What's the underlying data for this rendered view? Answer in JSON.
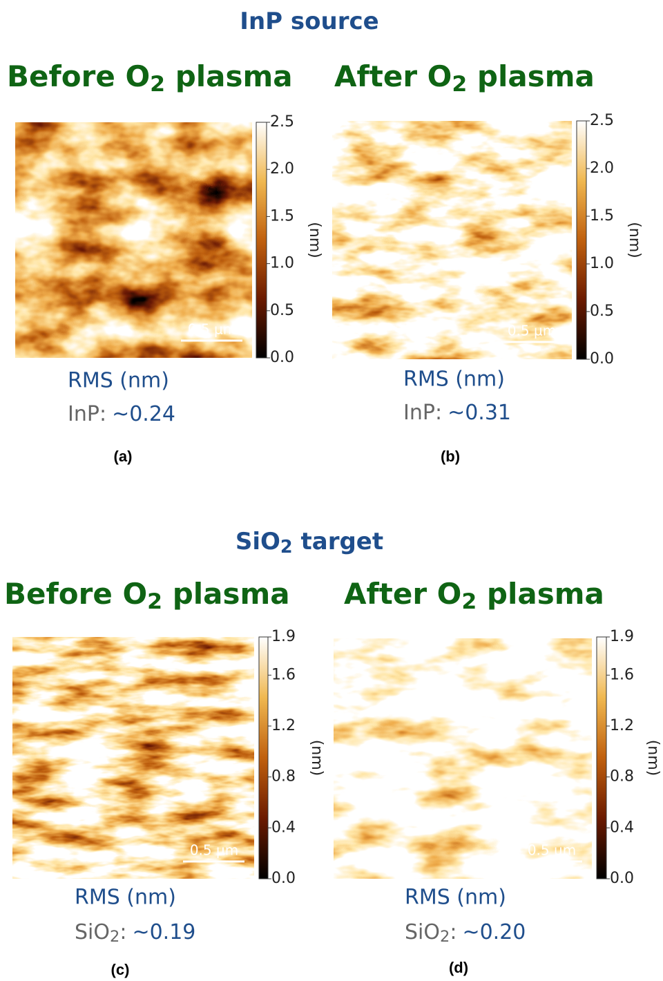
{
  "sections": [
    {
      "title": [
        "InP source"
      ],
      "panels": [
        {
          "heading": [
            "Before O",
            "2",
            " plasma"
          ],
          "colorbar": {
            "ticks": [
              "2.5",
              "2.0",
              "1.5",
              "1.0",
              "0.5",
              "0.0"
            ],
            "unit": "(nm)"
          },
          "scale_bar": "0.5 µm",
          "rms_label": "RMS (nm)",
          "rms": {
            "material": [
              "InP:"
            ],
            "value": "~0.24"
          },
          "caption": "(a)"
        },
        {
          "heading": [
            "After O",
            "2",
            " plasma"
          ],
          "colorbar": {
            "ticks": [
              "2.5",
              "2.0",
              "1.5",
              "1.0",
              "0.5",
              "0.0"
            ],
            "unit": "(nm)"
          },
          "scale_bar": "0.5 µm",
          "rms_label": "RMS (nm)",
          "rms": {
            "material": [
              "InP:"
            ],
            "value": "~0.31"
          },
          "caption": "(b)"
        }
      ]
    },
    {
      "title": [
        "SiO",
        "2",
        " target"
      ],
      "panels": [
        {
          "heading": [
            "Before O",
            "2",
            " plasma"
          ],
          "colorbar": {
            "ticks": [
              "1.9",
              "1.6",
              "1.2",
              "0.8",
              "0.4",
              "0.0"
            ],
            "unit": "(nm)"
          },
          "scale_bar": "0.5 µm",
          "rms_label": "RMS (nm)",
          "rms": {
            "material": [
              "SiO",
              "2",
              ":"
            ],
            "value": "~0.19"
          },
          "caption": "(c)"
        },
        {
          "heading": [
            "After O",
            "2",
            " plasma"
          ],
          "colorbar": {
            "ticks": [
              "1.9",
              "1.6",
              "1.2",
              "0.8",
              "0.4",
              "0.0"
            ],
            "unit": "(nm)"
          },
          "scale_bar": "0.5 µm",
          "rms_label": "RMS (nm)",
          "rms": {
            "material": [
              "SiO",
              "2",
              ":"
            ],
            "value": "~0.20"
          },
          "caption": "(d)"
        }
      ]
    }
  ]
}
